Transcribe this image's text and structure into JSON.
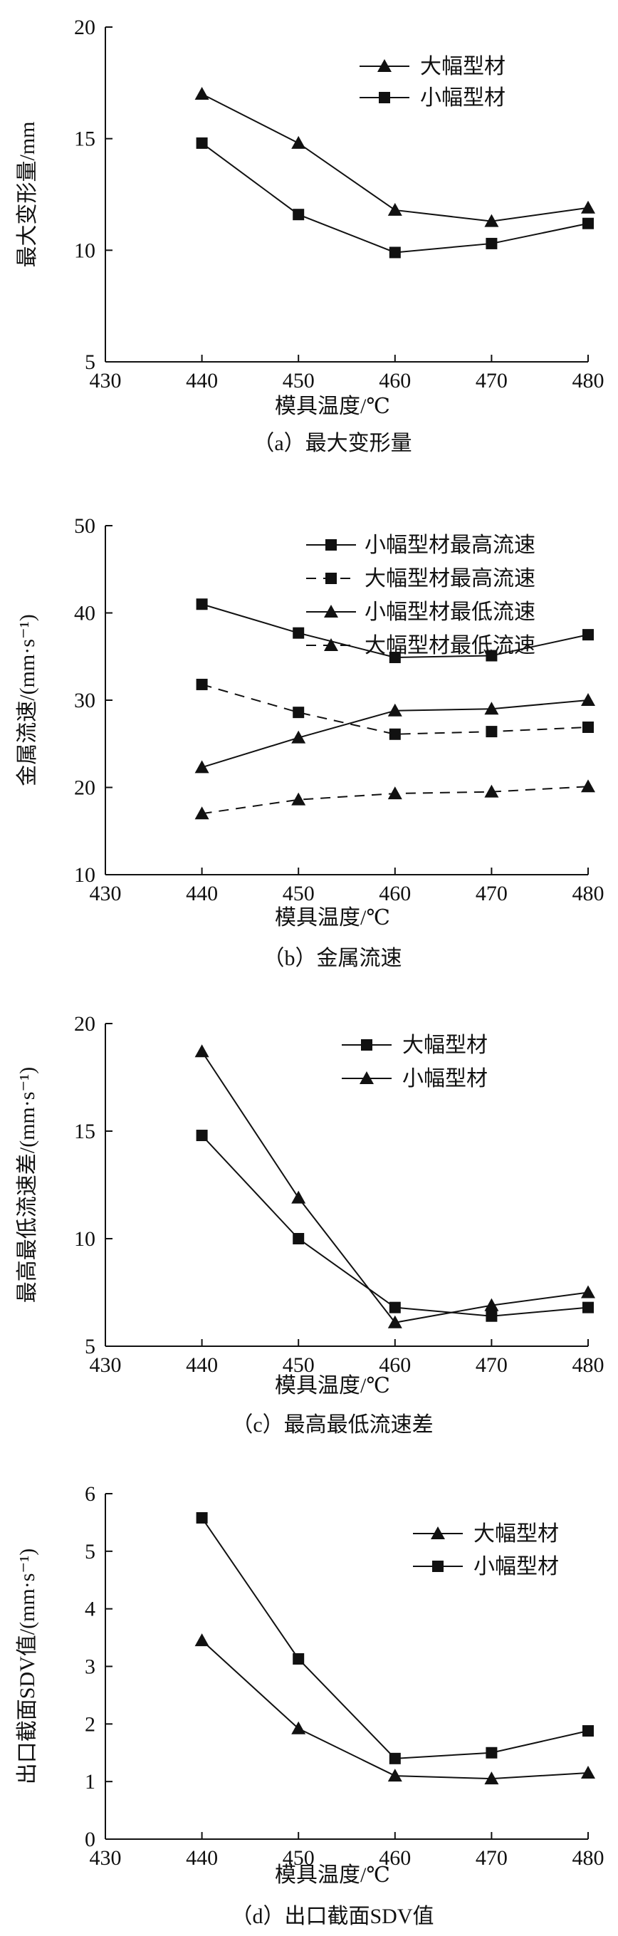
{
  "chart_data": [
    {
      "type": "line",
      "caption": "（a）最大变形量",
      "xlabel": "模具温度/℃",
      "ylabel": "最大变形量/mm",
      "xlim": [
        430,
        480
      ],
      "ylim": [
        5,
        20
      ],
      "xticks": [
        430,
        440,
        450,
        460,
        470,
        480
      ],
      "yticks": [
        5,
        10,
        15,
        20
      ],
      "grid": false,
      "legend_position": "top-right",
      "x": [
        440,
        450,
        460,
        470,
        480
      ],
      "series": [
        {
          "name": "大幅型材",
          "marker": "triangle",
          "dash": "solid",
          "values": [
            17.0,
            14.8,
            11.8,
            11.3,
            11.9
          ]
        },
        {
          "name": "小幅型材",
          "marker": "square",
          "dash": "solid",
          "values": [
            14.8,
            11.6,
            9.9,
            10.3,
            11.2
          ]
        }
      ]
    },
    {
      "type": "line",
      "caption": "（b）金属流速",
      "xlabel": "模具温度/℃",
      "ylabel": "金属流速/(mm·s⁻¹)",
      "xlim": [
        430,
        480
      ],
      "ylim": [
        10,
        50
      ],
      "xticks": [
        430,
        440,
        450,
        460,
        470,
        480
      ],
      "yticks": [
        10,
        20,
        30,
        40,
        50
      ],
      "grid": false,
      "legend_position": "top-right",
      "x": [
        440,
        450,
        460,
        470,
        480
      ],
      "series": [
        {
          "name": "小幅型材最高流速",
          "marker": "square",
          "dash": "solid",
          "values": [
            41.0,
            37.7,
            34.9,
            35.1,
            37.5
          ]
        },
        {
          "name": "大幅型材最高流速",
          "marker": "square",
          "dash": "dashed",
          "values": [
            31.8,
            28.6,
            26.1,
            26.4,
            26.9
          ]
        },
        {
          "name": "小幅型材最低流速",
          "marker": "triangle",
          "dash": "solid",
          "values": [
            22.3,
            25.7,
            28.8,
            29.0,
            30.0
          ]
        },
        {
          "name": "大幅型材最低流速",
          "marker": "triangle",
          "dash": "dashed",
          "values": [
            17.0,
            18.6,
            19.3,
            19.5,
            20.1
          ]
        }
      ]
    },
    {
      "type": "line",
      "caption": "（c）最高最低流速差",
      "xlabel": "模具温度/℃",
      "ylabel": "最高最低流速差/(mm·s⁻¹)",
      "xlim": [
        430,
        480
      ],
      "ylim": [
        5,
        20
      ],
      "xticks": [
        430,
        440,
        450,
        460,
        470,
        480
      ],
      "yticks": [
        5,
        10,
        15,
        20
      ],
      "grid": false,
      "legend_position": "top-right",
      "x": [
        440,
        450,
        460,
        470,
        480
      ],
      "series": [
        {
          "name": "大幅型材",
          "marker": "square",
          "dash": "solid",
          "values": [
            14.8,
            10.0,
            6.8,
            6.4,
            6.8
          ]
        },
        {
          "name": "小幅型材",
          "marker": "triangle",
          "dash": "solid",
          "values": [
            18.7,
            11.9,
            6.1,
            6.9,
            7.5
          ]
        }
      ]
    },
    {
      "type": "line",
      "caption": "（d）出口截面SDV值",
      "xlabel": "模具温度/℃",
      "ylabel": "出口截面SDV值/(mm·s⁻¹)",
      "xlim": [
        430,
        480
      ],
      "ylim": [
        0,
        6
      ],
      "xticks": [
        430,
        440,
        450,
        460,
        470,
        480
      ],
      "yticks": [
        0,
        1,
        2,
        3,
        4,
        5,
        6
      ],
      "grid": false,
      "legend_position": "top-right",
      "x": [
        440,
        450,
        460,
        470,
        480
      ],
      "series": [
        {
          "name": "大幅型材",
          "marker": "triangle",
          "dash": "solid",
          "values": [
            3.45,
            1.92,
            1.1,
            1.05,
            1.15
          ]
        },
        {
          "name": "小幅型材",
          "marker": "square",
          "dash": "solid",
          "values": [
            5.58,
            3.13,
            1.4,
            1.5,
            1.88
          ]
        }
      ]
    }
  ]
}
